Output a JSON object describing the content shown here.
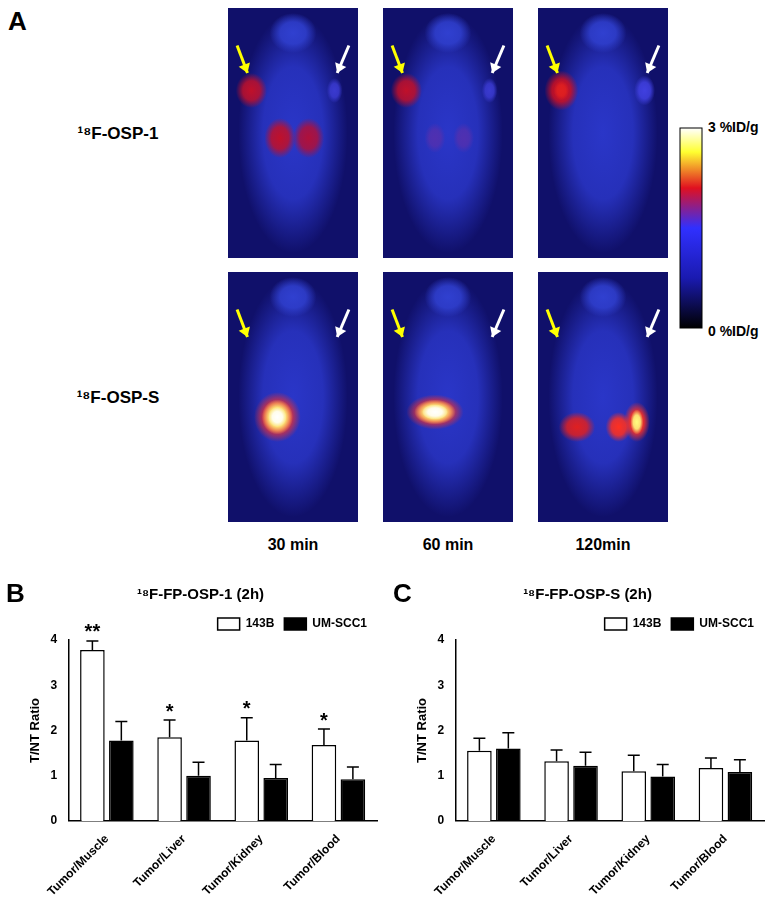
{
  "panel_a": {
    "panel_label": "A",
    "rows": [
      "¹⁸F-OSP-1",
      "¹⁸F-OSP-S"
    ],
    "columns": [
      "30 min",
      "60 min",
      "120min"
    ],
    "colorbar": {
      "range": [
        0,
        3
      ],
      "ticks": [
        {
          "value": 0,
          "label": "0 %ID/g"
        },
        {
          "value": 3,
          "label": "3 %ID/g"
        }
      ]
    }
  },
  "chart_data": [
    {
      "type": "bar",
      "panel_label": "B",
      "title": "¹⁸F-FP-OSP-1 (2h)",
      "y_label": "T/NT Ratio",
      "categories": [
        "Tumor/Muscle",
        "Tumor/Liver",
        "Tumor/Kidney",
        "Tumor/Blood"
      ],
      "series": [
        {
          "name": "143B",
          "color": "#ffffff",
          "values": [
            3.78,
            1.85,
            1.78,
            1.68
          ],
          "errors": [
            0.2,
            0.38,
            0.5,
            0.35
          ]
        },
        {
          "name": "UM-SCC1",
          "color": "#000000",
          "values": [
            1.78,
            1.0,
            0.95,
            0.92
          ],
          "errors": [
            0.42,
            0.3,
            0.3,
            0.27
          ]
        }
      ],
      "annotations": [
        {
          "category": "Tumor/Muscle",
          "series": "143B",
          "text": "**"
        },
        {
          "category": "Tumor/Liver",
          "series": "143B",
          "text": "*"
        },
        {
          "category": "Tumor/Kidney",
          "series": "143B",
          "text": "*"
        },
        {
          "category": "Tumor/Blood",
          "series": "143B",
          "text": "*"
        }
      ],
      "ylim": [
        0,
        4
      ],
      "yticks": [
        0,
        1,
        2,
        3,
        4
      ],
      "grid": false,
      "legend": "upper right"
    },
    {
      "type": "bar",
      "panel_label": "C",
      "title": "¹⁸F-FP-OSP-S (2h)",
      "y_label": "T/NT Ratio",
      "categories": [
        "Tumor/Muscle",
        "Tumor/Liver",
        "Tumor/Kidney",
        "Tumor/Blood"
      ],
      "series": [
        {
          "name": "143B",
          "color": "#ffffff",
          "values": [
            1.55,
            1.32,
            1.1,
            1.17
          ],
          "errors": [
            0.28,
            0.25,
            0.35,
            0.22
          ]
        },
        {
          "name": "UM-SCC1",
          "color": "#000000",
          "values": [
            1.6,
            1.22,
            0.98,
            1.08
          ],
          "errors": [
            0.35,
            0.3,
            0.27,
            0.27
          ]
        }
      ],
      "ylim": [
        0,
        4
      ],
      "yticks": [
        0,
        1,
        2,
        3,
        4
      ],
      "grid": false,
      "legend": "upper right"
    }
  ]
}
